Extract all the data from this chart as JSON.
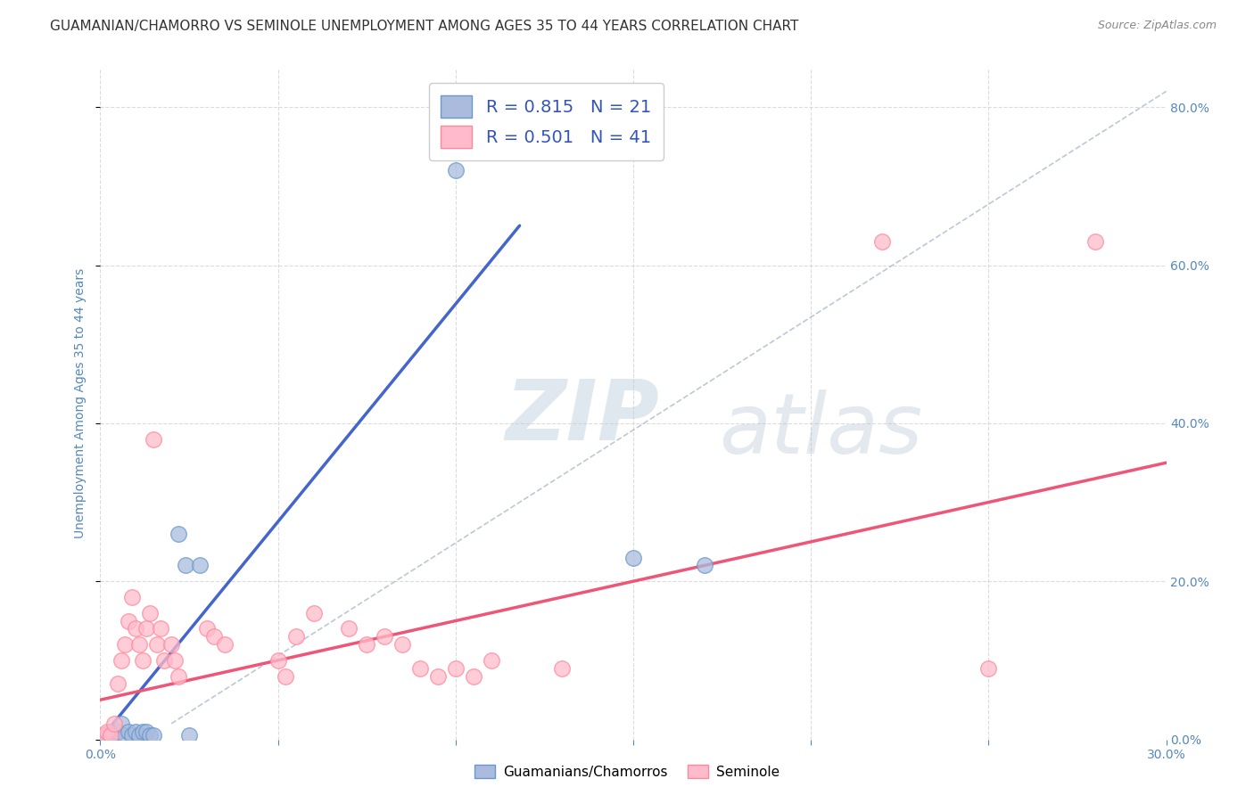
{
  "title": "GUAMANIAN/CHAMORRO VS SEMINOLE UNEMPLOYMENT AMONG AGES 35 TO 44 YEARS CORRELATION CHART",
  "source": "Source: ZipAtlas.com",
  "ylabel": "Unemployment Among Ages 35 to 44 years",
  "xlim": [
    0.0,
    0.3
  ],
  "ylim": [
    0.0,
    0.85
  ],
  "xticks": [
    0.0,
    0.05,
    0.1,
    0.15,
    0.2,
    0.25,
    0.3
  ],
  "yticks": [
    0.0,
    0.2,
    0.4,
    0.6,
    0.8
  ],
  "blue_R": 0.815,
  "blue_N": 21,
  "pink_R": 0.501,
  "pink_N": 41,
  "blue_fill": "#AABBDD",
  "pink_fill": "#FFBBCC",
  "blue_edge": "#6699CC",
  "pink_edge": "#FF8899",
  "blue_line_color": "#4466CC",
  "pink_line_color": "#EE5577",
  "blue_scatter": [
    [
      0.002,
      0.005
    ],
    [
      0.003,
      0.01
    ],
    [
      0.004,
      0.005
    ],
    [
      0.005,
      0.01
    ],
    [
      0.006,
      0.02
    ],
    [
      0.007,
      0.005
    ],
    [
      0.008,
      0.01
    ],
    [
      0.009,
      0.005
    ],
    [
      0.01,
      0.01
    ],
    [
      0.011,
      0.005
    ],
    [
      0.012,
      0.01
    ],
    [
      0.013,
      0.01
    ],
    [
      0.014,
      0.005
    ],
    [
      0.015,
      0.005
    ],
    [
      0.022,
      0.26
    ],
    [
      0.024,
      0.22
    ],
    [
      0.028,
      0.22
    ],
    [
      0.1,
      0.72
    ],
    [
      0.025,
      0.005
    ],
    [
      0.15,
      0.23
    ],
    [
      0.17,
      0.22
    ]
  ],
  "pink_scatter": [
    [
      0.001,
      0.005
    ],
    [
      0.002,
      0.01
    ],
    [
      0.003,
      0.005
    ],
    [
      0.004,
      0.02
    ],
    [
      0.005,
      0.07
    ],
    [
      0.006,
      0.1
    ],
    [
      0.007,
      0.12
    ],
    [
      0.008,
      0.15
    ],
    [
      0.009,
      0.18
    ],
    [
      0.01,
      0.14
    ],
    [
      0.011,
      0.12
    ],
    [
      0.012,
      0.1
    ],
    [
      0.013,
      0.14
    ],
    [
      0.014,
      0.16
    ],
    [
      0.015,
      0.38
    ],
    [
      0.016,
      0.12
    ],
    [
      0.017,
      0.14
    ],
    [
      0.018,
      0.1
    ],
    [
      0.02,
      0.12
    ],
    [
      0.021,
      0.1
    ],
    [
      0.022,
      0.08
    ],
    [
      0.03,
      0.14
    ],
    [
      0.032,
      0.13
    ],
    [
      0.035,
      0.12
    ],
    [
      0.05,
      0.1
    ],
    [
      0.052,
      0.08
    ],
    [
      0.055,
      0.13
    ],
    [
      0.06,
      0.16
    ],
    [
      0.07,
      0.14
    ],
    [
      0.075,
      0.12
    ],
    [
      0.08,
      0.13
    ],
    [
      0.085,
      0.12
    ],
    [
      0.09,
      0.09
    ],
    [
      0.095,
      0.08
    ],
    [
      0.1,
      0.09
    ],
    [
      0.105,
      0.08
    ],
    [
      0.11,
      0.1
    ],
    [
      0.13,
      0.09
    ],
    [
      0.22,
      0.63
    ],
    [
      0.25,
      0.09
    ],
    [
      0.28,
      0.63
    ]
  ],
  "blue_trend_x": [
    0.0,
    0.118
  ],
  "blue_trend_y": [
    0.0,
    0.65
  ],
  "pink_trend_x": [
    0.0,
    0.3
  ],
  "pink_trend_y": [
    0.05,
    0.35
  ],
  "ref_line_x": [
    0.02,
    0.3
  ],
  "ref_line_y": [
    0.02,
    0.82
  ],
  "watermark_top": "ZIP",
  "watermark_bottom": "atlas",
  "background_color": "#FFFFFF",
  "grid_color": "#CCCCCC",
  "axis_tick_color": "#5588BB",
  "ylabel_color": "#5588BB",
  "title_color": "#333333",
  "title_fontsize": 11,
  "ylabel_fontsize": 10,
  "tick_fontsize": 10,
  "legend_text_color": "#3355BB",
  "source_color": "#888888"
}
